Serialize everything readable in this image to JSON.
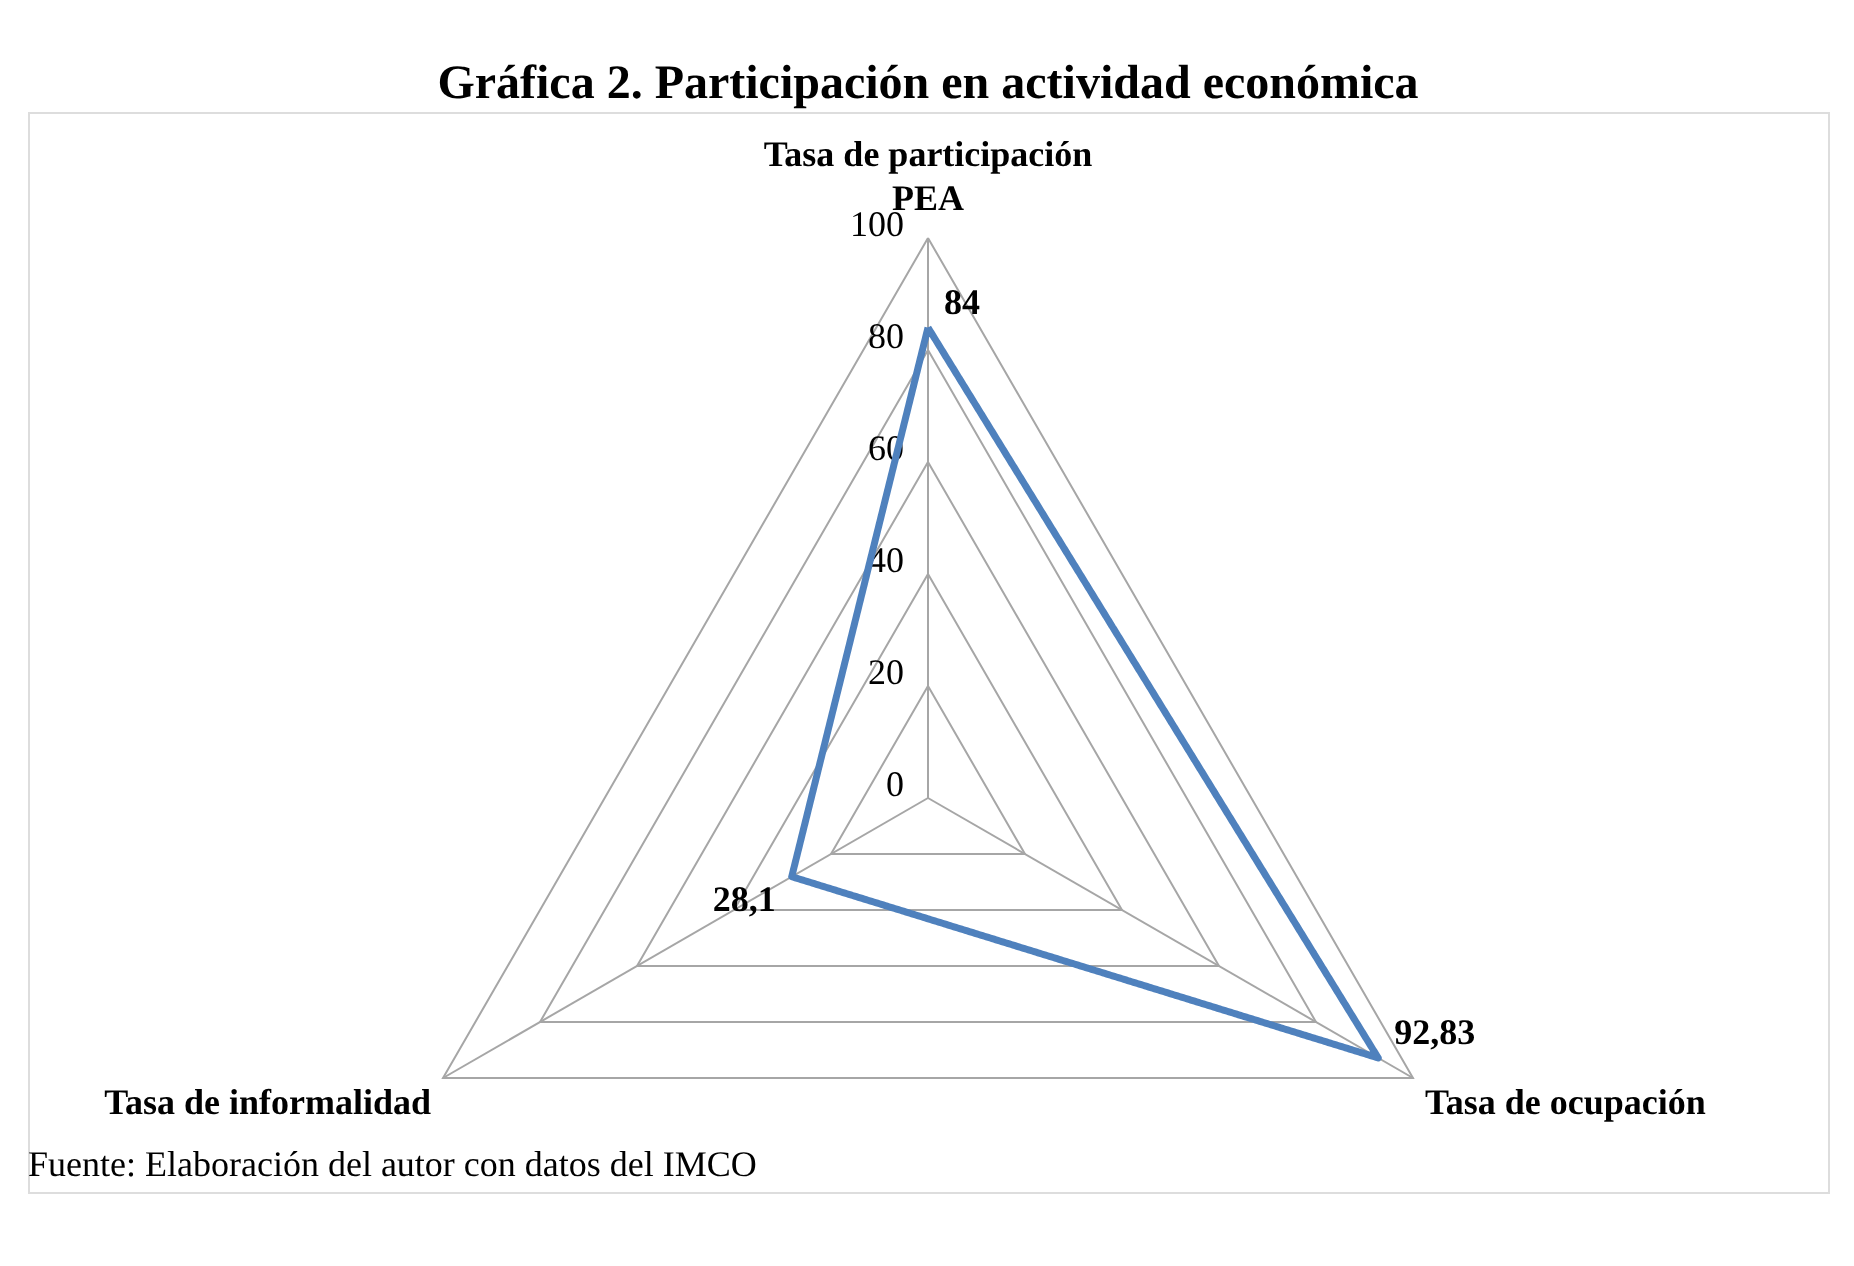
{
  "chart_data": {
    "type": "radar",
    "title": "Gráfica 2. Participación en actividad económica",
    "categories": [
      "Tasa de participación\nPEA",
      "Tasa de ocupación",
      "Tasa de informalidad"
    ],
    "series": [
      {
        "color": "#4f81bd",
        "values": [
          84,
          92.83,
          28.1
        ],
        "value_labels": [
          "84",
          "92,83",
          "28,1"
        ]
      }
    ],
    "ylim": [
      0,
      100
    ],
    "yticks": [
      0,
      20,
      40,
      60,
      80,
      100
    ],
    "grid": true,
    "marker": "none",
    "line_style": "solid",
    "annotations": [
      "Fuente: Elaboración del autor con datos del IMCO"
    ]
  }
}
